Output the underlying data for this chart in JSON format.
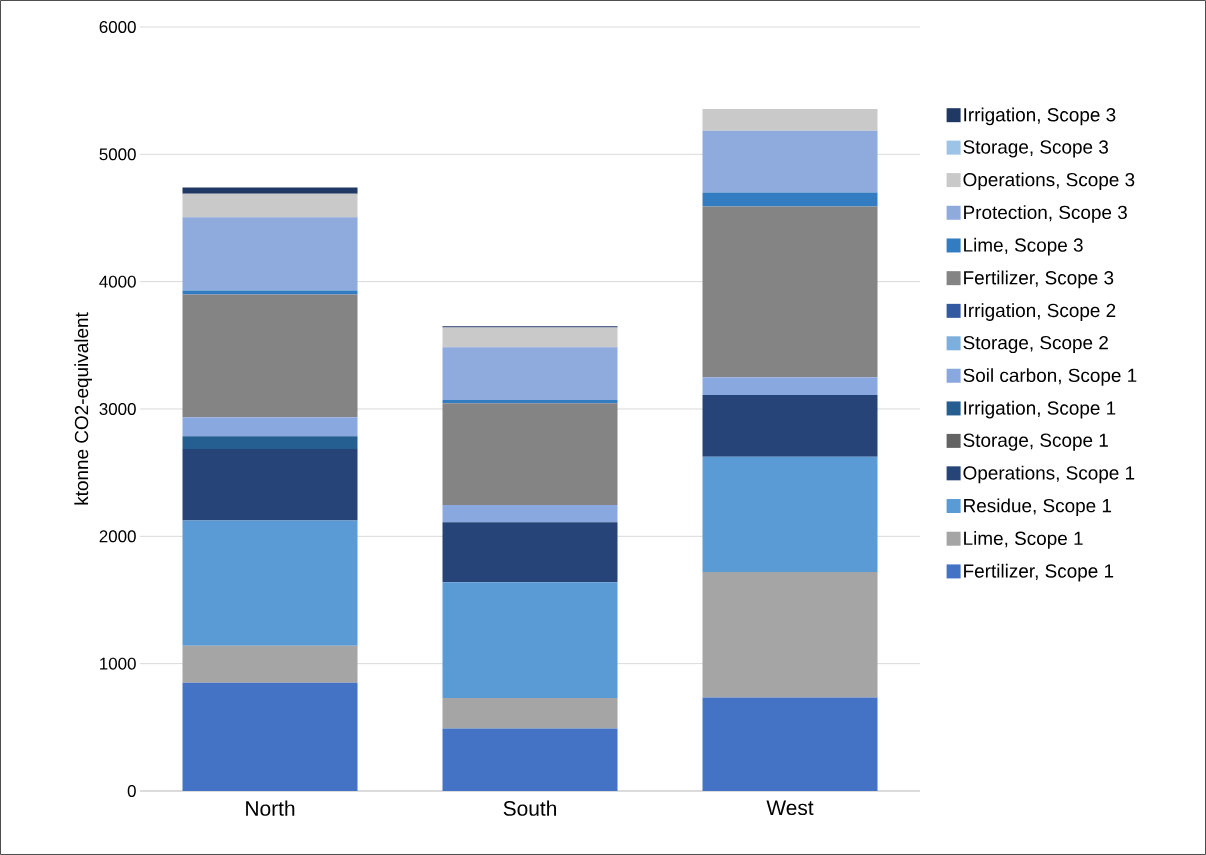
{
  "chart_data": {
    "type": "bar",
    "stacked": true,
    "ylabel": "ktonne CO2-equivalent",
    "categories": [
      "North",
      "South",
      "West"
    ],
    "ylim": [
      0,
      6000
    ],
    "yticks": [
      0,
      1000,
      2000,
      3000,
      4000,
      5000,
      6000
    ],
    "grid": "y",
    "legend": "right",
    "series": [
      {
        "name": "Fertilizer, Scope 1",
        "color": "#4472c4",
        "values": [
          850,
          490,
          735
        ]
      },
      {
        "name": "Lime, Scope 1",
        "color": "#a5a5a5",
        "values": [
          290,
          240,
          985
        ]
      },
      {
        "name": "Residue, Scope 1",
        "color": "#5b9bd5",
        "values": [
          985,
          910,
          905
        ]
      },
      {
        "name": "Operations, Scope 1",
        "color": "#264478",
        "values": [
          560,
          470,
          485
        ]
      },
      {
        "name": "Storage, Scope 1",
        "color": "#636363",
        "values": [
          0,
          0,
          0
        ]
      },
      {
        "name": "Irrigation, Scope 1",
        "color": "#255e91",
        "values": [
          100,
          0,
          0
        ]
      },
      {
        "name": "Soil carbon, Scope 1",
        "color": "#8aa8e0",
        "values": [
          150,
          135,
          140
        ]
      },
      {
        "name": "Storage, Scope 2",
        "color": "#7cafdd",
        "values": [
          0,
          0,
          0
        ]
      },
      {
        "name": "Irrigation, Scope 2",
        "color": "#335aa1",
        "values": [
          0,
          0,
          0
        ]
      },
      {
        "name": "Fertilizer, Scope 3",
        "color": "#848484",
        "values": [
          965,
          800,
          1340
        ]
      },
      {
        "name": "Lime, Scope 3",
        "color": "#327dc2",
        "values": [
          30,
          25,
          110
        ]
      },
      {
        "name": "Protection, Scope 3",
        "color": "#8faadc",
        "values": [
          575,
          415,
          485
        ]
      },
      {
        "name": "Operations, Scope 3",
        "color": "#c9c9c9",
        "values": [
          185,
          155,
          170
        ]
      },
      {
        "name": "Storage, Scope 3",
        "color": "#9dc3e6",
        "values": [
          0,
          0,
          0
        ]
      },
      {
        "name": "Irrigation, Scope 3",
        "color": "#203864",
        "values": [
          50,
          10,
          0
        ]
      }
    ]
  }
}
